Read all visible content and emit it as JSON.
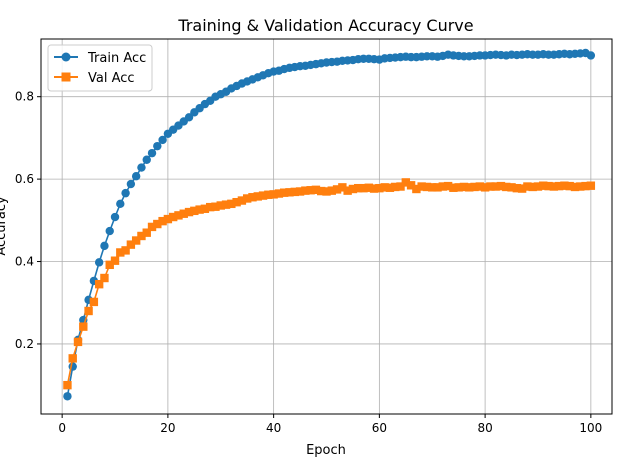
{
  "chart_data": {
    "type": "line",
    "title": "Training & Validation Accuracy Curve",
    "xlabel": "Epoch",
    "ylabel": "Accuracy",
    "xlim": [
      -4,
      104
    ],
    "ylim": [
      0.03,
      0.94
    ],
    "xticks": [
      0,
      20,
      40,
      60,
      80,
      100
    ],
    "yticks": [
      0.2,
      0.4,
      0.6,
      0.8
    ],
    "xtick_labels": [
      "0",
      "20",
      "40",
      "60",
      "80",
      "100"
    ],
    "ytick_labels": [
      "0.2",
      "0.4",
      "0.6",
      "0.8"
    ],
    "grid": true,
    "legend_position": "top-left",
    "x": [
      1,
      2,
      3,
      4,
      5,
      6,
      7,
      8,
      9,
      10,
      11,
      12,
      13,
      14,
      15,
      16,
      17,
      18,
      19,
      20,
      21,
      22,
      23,
      24,
      25,
      26,
      27,
      28,
      29,
      30,
      31,
      32,
      33,
      34,
      35,
      36,
      37,
      38,
      39,
      40,
      41,
      42,
      43,
      44,
      45,
      46,
      47,
      48,
      49,
      50,
      51,
      52,
      53,
      54,
      55,
      56,
      57,
      58,
      59,
      60,
      61,
      62,
      63,
      64,
      65,
      66,
      67,
      68,
      69,
      70,
      71,
      72,
      73,
      74,
      75,
      76,
      77,
      78,
      79,
      80,
      81,
      82,
      83,
      84,
      85,
      86,
      87,
      88,
      89,
      90,
      91,
      92,
      93,
      94,
      95,
      96,
      97,
      98,
      99,
      100
    ],
    "series": [
      {
        "name": "Train Acc",
        "color": "#1f77b4",
        "marker": "circle",
        "values": [
          0.073,
          0.145,
          0.21,
          0.258,
          0.307,
          0.353,
          0.398,
          0.438,
          0.474,
          0.508,
          0.54,
          0.566,
          0.588,
          0.607,
          0.628,
          0.647,
          0.663,
          0.68,
          0.695,
          0.71,
          0.72,
          0.73,
          0.74,
          0.75,
          0.762,
          0.772,
          0.782,
          0.79,
          0.8,
          0.806,
          0.812,
          0.82,
          0.826,
          0.832,
          0.837,
          0.842,
          0.847,
          0.852,
          0.857,
          0.861,
          0.863,
          0.867,
          0.87,
          0.872,
          0.874,
          0.875,
          0.877,
          0.879,
          0.881,
          0.883,
          0.884,
          0.885,
          0.887,
          0.888,
          0.889,
          0.891,
          0.892,
          0.892,
          0.891,
          0.89,
          0.893,
          0.894,
          0.895,
          0.896,
          0.897,
          0.896,
          0.896,
          0.897,
          0.898,
          0.898,
          0.897,
          0.899,
          0.902,
          0.9,
          0.899,
          0.898,
          0.898,
          0.899,
          0.9,
          0.9,
          0.901,
          0.902,
          0.901,
          0.9,
          0.902,
          0.901,
          0.902,
          0.903,
          0.902,
          0.902,
          0.903,
          0.902,
          0.902,
          0.903,
          0.904,
          0.903,
          0.904,
          0.905,
          0.906,
          0.9
        ]
      },
      {
        "name": "Val Acc",
        "color": "#ff7f0e",
        "marker": "square",
        "values": [
          0.1,
          0.165,
          0.205,
          0.242,
          0.28,
          0.302,
          0.345,
          0.36,
          0.392,
          0.402,
          0.422,
          0.427,
          0.441,
          0.451,
          0.462,
          0.47,
          0.484,
          0.491,
          0.498,
          0.503,
          0.508,
          0.512,
          0.516,
          0.52,
          0.523,
          0.526,
          0.528,
          0.532,
          0.533,
          0.536,
          0.538,
          0.54,
          0.544,
          0.548,
          0.553,
          0.556,
          0.558,
          0.56,
          0.562,
          0.563,
          0.565,
          0.567,
          0.568,
          0.569,
          0.57,
          0.572,
          0.573,
          0.574,
          0.571,
          0.57,
          0.572,
          0.575,
          0.58,
          0.572,
          0.576,
          0.578,
          0.578,
          0.579,
          0.577,
          0.578,
          0.58,
          0.579,
          0.581,
          0.582,
          0.592,
          0.585,
          0.576,
          0.582,
          0.581,
          0.58,
          0.58,
          0.582,
          0.583,
          0.579,
          0.58,
          0.581,
          0.58,
          0.581,
          0.582,
          0.58,
          0.582,
          0.582,
          0.583,
          0.581,
          0.58,
          0.578,
          0.577,
          0.582,
          0.581,
          0.582,
          0.584,
          0.583,
          0.582,
          0.583,
          0.584,
          0.583,
          0.581,
          0.582,
          0.583,
          0.584
        ]
      }
    ]
  }
}
